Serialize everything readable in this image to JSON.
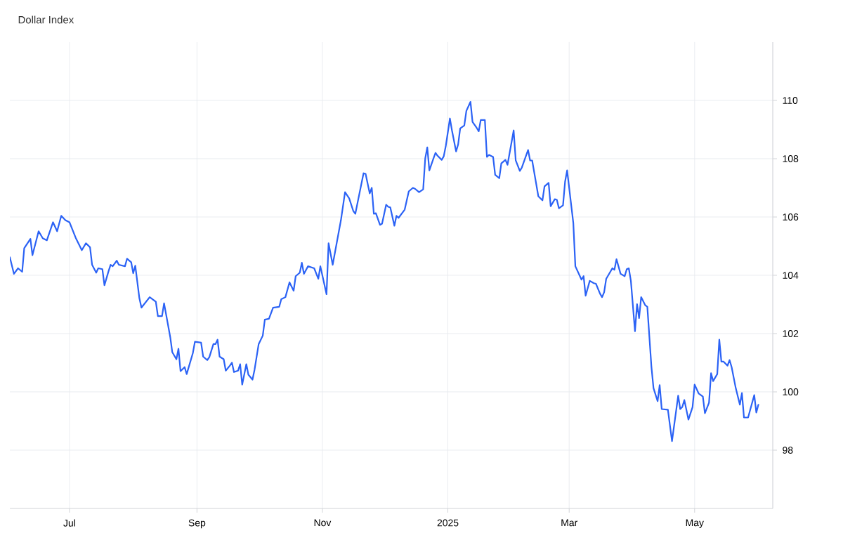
{
  "chart_data": {
    "type": "line",
    "title": "Dollar Index",
    "x": [
      "2024-06-02",
      "2024-06-04",
      "2024-06-06",
      "2024-06-08",
      "2024-06-09",
      "2024-06-12",
      "2024-06-13",
      "2024-06-16",
      "2024-06-18",
      "2024-06-20",
      "2024-06-23",
      "2024-06-25",
      "2024-06-27",
      "2024-06-29",
      "2024-07-01",
      "2024-07-04",
      "2024-07-07",
      "2024-07-09",
      "2024-07-11",
      "2024-07-12",
      "2024-07-14",
      "2024-07-15",
      "2024-07-17",
      "2024-07-18",
      "2024-07-20",
      "2024-07-21",
      "2024-07-22",
      "2024-07-24",
      "2024-07-25",
      "2024-07-28",
      "2024-07-29",
      "2024-07-31",
      "2024-08-01",
      "2024-08-02",
      "2024-08-04",
      "2024-08-05",
      "2024-08-09",
      "2024-08-12",
      "2024-08-13",
      "2024-08-15",
      "2024-08-16",
      "2024-08-19",
      "2024-08-20",
      "2024-08-22",
      "2024-08-23",
      "2024-08-24",
      "2024-08-26",
      "2024-08-27",
      "2024-08-30",
      "2024-08-31",
      "2024-09-03",
      "2024-09-04",
      "2024-09-06",
      "2024-09-07",
      "2024-09-09",
      "2024-09-10",
      "2024-09-11",
      "2024-09-12",
      "2024-09-14",
      "2024-09-15",
      "2024-09-17",
      "2024-09-18",
      "2024-09-19",
      "2024-09-21",
      "2024-09-22",
      "2024-09-23",
      "2024-09-25",
      "2024-09-26",
      "2024-09-28",
      "2024-09-29",
      "2024-10-01",
      "2024-10-03",
      "2024-10-04",
      "2024-10-06",
      "2024-10-08",
      "2024-10-11",
      "2024-10-12",
      "2024-10-14",
      "2024-10-16",
      "2024-10-18",
      "2024-10-19",
      "2024-10-21",
      "2024-10-22",
      "2024-10-23",
      "2024-10-25",
      "2024-10-28",
      "2024-10-30",
      "2024-10-31",
      "2024-11-03",
      "2024-11-04",
      "2024-11-06",
      "2024-11-10",
      "2024-11-12",
      "2024-11-14",
      "2024-11-16",
      "2024-11-17",
      "2024-11-21",
      "2024-11-22",
      "2024-11-24",
      "2024-11-25",
      "2024-11-26",
      "2024-11-27",
      "2024-11-29",
      "2024-11-30",
      "2024-12-02",
      "2024-12-03",
      "2024-12-04",
      "2024-12-06",
      "2024-12-07",
      "2024-12-08",
      "2024-12-11",
      "2024-12-13",
      "2024-12-15",
      "2024-12-16",
      "2024-12-18",
      "2024-12-20",
      "2024-12-21",
      "2024-12-22",
      "2024-12-23",
      "2024-12-25",
      "2024-12-26",
      "2024-12-27",
      "2024-12-29",
      "2024-12-30",
      "2024-12-31",
      "2025-01-02",
      "2025-01-03",
      "2025-01-05",
      "2025-01-06",
      "2025-01-07",
      "2025-01-09",
      "2025-01-10",
      "2025-01-12",
      "2025-01-13",
      "2025-01-15",
      "2025-01-16",
      "2025-01-17",
      "2025-01-19",
      "2025-01-20",
      "2025-01-21",
      "2025-01-23",
      "2025-01-24",
      "2025-01-26",
      "2025-01-27",
      "2025-01-29",
      "2025-01-30",
      "2025-02-02",
      "2025-02-03",
      "2025-02-05",
      "2025-02-06",
      "2025-02-09",
      "2025-02-10",
      "2025-02-11",
      "2025-02-14",
      "2025-02-16",
      "2025-02-17",
      "2025-02-19",
      "2025-02-20",
      "2025-02-22",
      "2025-02-23",
      "2025-02-24",
      "2025-02-26",
      "2025-02-27",
      "2025-02-28",
      "2025-03-03",
      "2025-03-04",
      "2025-03-07",
      "2025-03-08",
      "2025-03-09",
      "2025-03-11",
      "2025-03-13",
      "2025-03-14",
      "2025-03-16",
      "2025-03-17",
      "2025-03-18",
      "2025-03-19",
      "2025-03-22",
      "2025-03-23",
      "2025-03-24",
      "2025-03-26",
      "2025-03-28",
      "2025-03-29",
      "2025-03-30",
      "2025-03-31",
      "2025-04-02",
      "2025-04-03",
      "2025-04-04",
      "2025-04-05",
      "2025-04-07",
      "2025-04-08",
      "2025-04-10",
      "2025-04-11",
      "2025-04-13",
      "2025-04-14",
      "2025-04-15",
      "2025-04-18",
      "2025-04-20",
      "2025-04-23",
      "2025-04-24",
      "2025-04-25",
      "2025-04-26",
      "2025-04-28",
      "2025-04-30",
      "2025-05-01",
      "2025-05-03",
      "2025-05-05",
      "2025-05-06",
      "2025-05-08",
      "2025-05-09",
      "2025-05-10",
      "2025-05-12",
      "2025-05-13",
      "2025-05-14",
      "2025-05-15",
      "2025-05-17",
      "2025-05-18",
      "2025-05-19",
      "2025-05-21",
      "2025-05-23",
      "2025-05-24",
      "2025-05-25",
      "2025-05-27",
      "2025-05-30",
      "2025-05-31",
      "2025-06-01"
    ],
    "series": [
      {
        "color": "#2b62f5",
        "values": [
          104.62,
          104.05,
          104.24,
          104.12,
          104.93,
          105.25,
          104.69,
          105.51,
          105.27,
          105.2,
          105.82,
          105.51,
          106.04,
          105.89,
          105.82,
          105.29,
          104.86,
          105.1,
          104.96,
          104.36,
          104.09,
          104.24,
          104.21,
          103.66,
          104.14,
          104.36,
          104.31,
          104.5,
          104.36,
          104.31,
          104.57,
          104.45,
          104.07,
          104.33,
          103.21,
          102.89,
          103.25,
          103.09,
          102.6,
          102.6,
          103.04,
          101.88,
          101.36,
          101.12,
          101.48,
          100.71,
          100.85,
          100.61,
          101.33,
          101.72,
          101.69,
          101.21,
          101.09,
          101.19,
          101.64,
          101.64,
          101.79,
          101.21,
          101.12,
          100.73,
          100.9,
          101.0,
          100.68,
          100.73,
          100.95,
          100.25,
          100.95,
          100.59,
          100.42,
          100.76,
          101.64,
          101.93,
          102.48,
          102.51,
          102.89,
          102.92,
          103.18,
          103.25,
          103.76,
          103.47,
          103.97,
          104.09,
          104.43,
          104.05,
          104.31,
          104.24,
          103.88,
          104.31,
          103.35,
          105.1,
          104.36,
          105.89,
          106.85,
          106.64,
          106.21,
          106.11,
          107.5,
          107.48,
          106.81,
          107.0,
          106.11,
          106.13,
          105.73,
          105.77,
          106.42,
          106.35,
          106.33,
          105.7,
          106.04,
          105.97,
          106.25,
          106.88,
          107.0,
          106.97,
          106.85,
          106.95,
          108.01,
          108.39,
          107.6,
          108.01,
          108.2,
          108.1,
          107.96,
          108.08,
          108.44,
          109.38,
          108.97,
          108.25,
          108.49,
          109.04,
          109.14,
          109.64,
          109.95,
          109.26,
          109.06,
          108.94,
          109.33,
          109.33,
          108.06,
          108.13,
          108.06,
          107.45,
          107.33,
          107.84,
          107.96,
          107.79,
          108.97,
          107.94,
          107.58,
          107.7,
          108.3,
          107.94,
          107.94,
          106.71,
          106.57,
          107.05,
          107.17,
          106.37,
          106.61,
          106.59,
          106.3,
          106.4,
          107.21,
          107.6,
          105.8,
          104.31,
          103.85,
          103.97,
          103.3,
          103.81,
          103.73,
          103.71,
          103.37,
          103.25,
          103.42,
          103.88,
          104.24,
          104.19,
          104.55,
          104.05,
          103.97,
          104.21,
          104.24,
          103.81,
          102.08,
          103.01,
          102.53,
          103.25,
          102.97,
          102.92,
          100.85,
          100.13,
          99.68,
          100.23,
          99.41,
          99.39,
          98.31,
          99.87,
          99.41,
          99.48,
          99.72,
          99.05,
          99.48,
          100.25,
          99.94,
          99.84,
          99.27,
          99.63,
          100.64,
          100.37,
          100.61,
          101.79,
          101.04,
          101.04,
          100.9,
          101.09,
          100.85,
          100.13,
          99.56,
          99.96,
          99.12,
          99.12,
          99.89,
          99.29,
          99.56
        ]
      }
    ],
    "xlim": [
      "2024-06-02",
      "2025-06-08"
    ],
    "xticks": [
      {
        "value": "2024-07-01",
        "label": "Jul"
      },
      {
        "value": "2024-09-01",
        "label": "Sep"
      },
      {
        "value": "2024-11-01",
        "label": "Nov"
      },
      {
        "value": "2025-01-01",
        "label": "2025"
      },
      {
        "value": "2025-03-01",
        "label": "Mar"
      },
      {
        "value": "2025-05-01",
        "label": "May"
      }
    ],
    "ylim": [
      96,
      112
    ],
    "yticks": [
      98,
      100,
      102,
      104,
      106,
      108,
      110
    ],
    "grid": true,
    "marker": "none",
    "line_style": "solid",
    "legend": false
  }
}
